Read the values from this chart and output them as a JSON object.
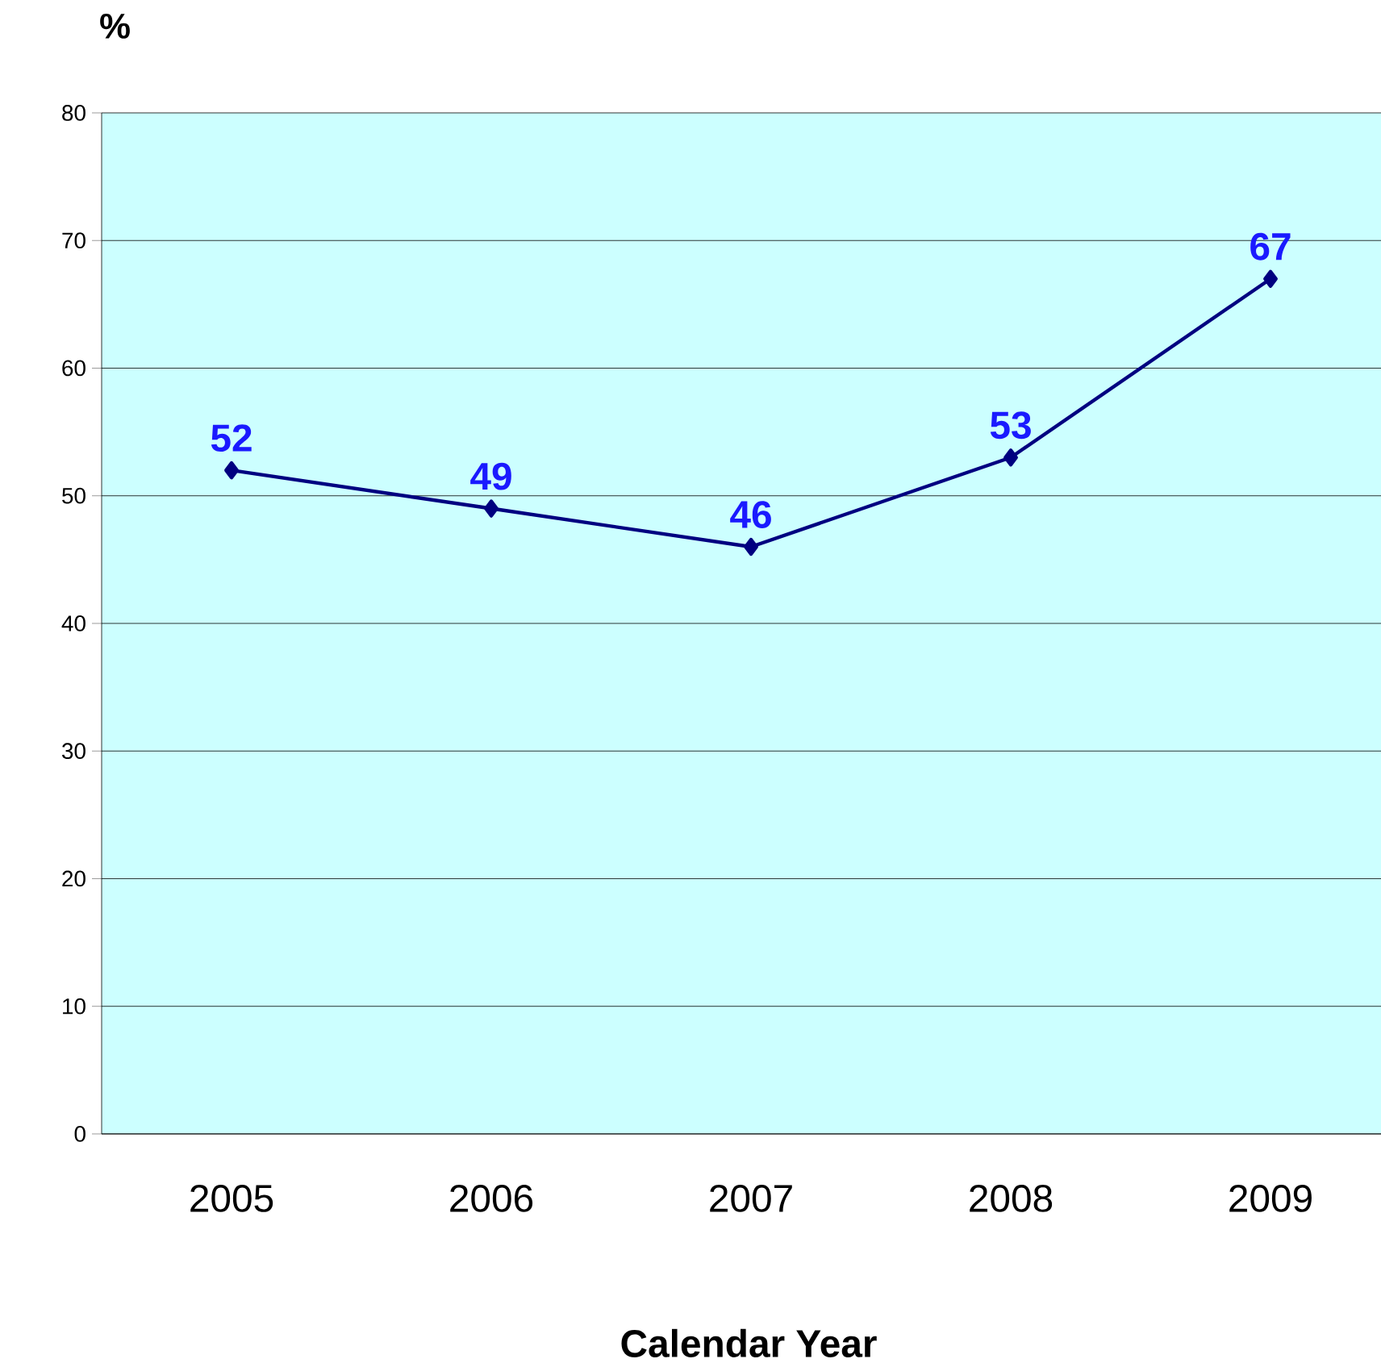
{
  "chart_data": {
    "type": "line",
    "ylabel": "%",
    "xlabel": "Calendar Year",
    "categories": [
      "2005",
      "2006",
      "2007",
      "2008",
      "2009"
    ],
    "series": [
      {
        "color": "#000080",
        "values": [
          52,
          49,
          46,
          53,
          67
        ]
      }
    ],
    "ylim": [
      0,
      80
    ],
    "yticks": [
      0,
      10,
      20,
      30,
      40,
      50,
      60,
      70,
      80
    ],
    "grid": "y",
    "marker": "diamond",
    "line_style": "solid",
    "data_labels": true
  }
}
